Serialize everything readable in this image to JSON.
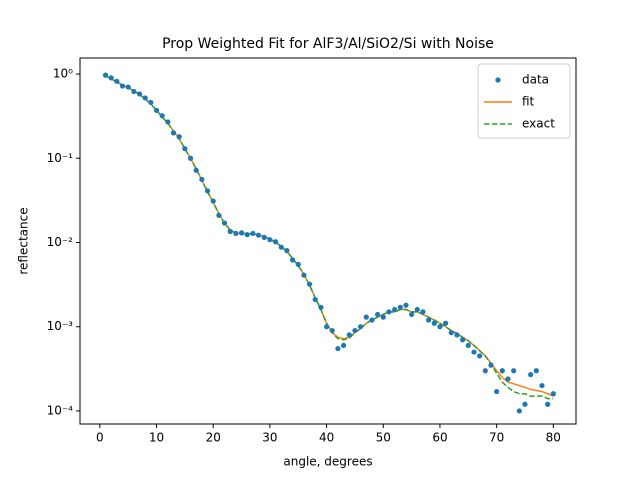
{
  "chart_data": {
    "type": "line",
    "title": "Prop Weighted Fit for AlF3/Al/SiO2/Si with Noise",
    "xlabel": "angle, degrees",
    "ylabel": "reflectance",
    "x": [
      1,
      2,
      3,
      4,
      5,
      6,
      7,
      8,
      9,
      10,
      11,
      12,
      13,
      14,
      15,
      16,
      17,
      18,
      19,
      20,
      21,
      22,
      23,
      24,
      25,
      26,
      27,
      28,
      29,
      30,
      31,
      32,
      33,
      34,
      35,
      36,
      37,
      38,
      39,
      40,
      41,
      42,
      43,
      44,
      45,
      46,
      47,
      48,
      49,
      50,
      51,
      52,
      53,
      54,
      55,
      56,
      57,
      58,
      59,
      60,
      61,
      62,
      63,
      64,
      65,
      66,
      67,
      68,
      69,
      70,
      71,
      72,
      73,
      74,
      75,
      76,
      77,
      78,
      79,
      80
    ],
    "series": [
      {
        "name": "data",
        "color": "#1f77b4",
        "style": "marker",
        "values": [
          0.97,
          0.9,
          0.82,
          0.72,
          0.7,
          0.62,
          0.58,
          0.52,
          0.46,
          0.37,
          0.32,
          0.27,
          0.2,
          0.18,
          0.13,
          0.1,
          0.072,
          0.056,
          0.041,
          0.031,
          0.021,
          0.017,
          0.0135,
          0.0128,
          0.013,
          0.0124,
          0.0128,
          0.0122,
          0.0115,
          0.0108,
          0.0102,
          0.0088,
          0.008,
          0.0062,
          0.0055,
          0.0041,
          0.0032,
          0.0021,
          0.0017,
          0.001,
          0.0009,
          0.00055,
          0.0006,
          0.0008,
          0.0009,
          0.001,
          0.0013,
          0.0012,
          0.0014,
          0.0013,
          0.0015,
          0.0016,
          0.0017,
          0.0018,
          0.0014,
          0.0016,
          0.0015,
          0.0012,
          0.0011,
          0.001,
          0.0011,
          0.00085,
          0.0008,
          0.0007,
          0.0006,
          0.0005,
          0.00045,
          0.0003,
          0.00035,
          0.00017,
          0.0003,
          0.00024,
          0.0003,
          0.0001,
          0.00012,
          0.00027,
          0.0003,
          0.0002,
          0.00012,
          0.00016
        ]
      },
      {
        "name": "fit",
        "color": "#ff7f0e",
        "style": "solid",
        "values": [
          0.95,
          0.88,
          0.8,
          0.74,
          0.69,
          0.63,
          0.57,
          0.51,
          0.44,
          0.37,
          0.31,
          0.26,
          0.21,
          0.17,
          0.13,
          0.1,
          0.075,
          0.055,
          0.04,
          0.03,
          0.022,
          0.017,
          0.014,
          0.013,
          0.0128,
          0.0127,
          0.0126,
          0.0123,
          0.0118,
          0.011,
          0.01,
          0.009,
          0.0078,
          0.0065,
          0.0053,
          0.0042,
          0.0031,
          0.0022,
          0.0016,
          0.0011,
          0.00085,
          0.00075,
          0.00072,
          0.00075,
          0.00085,
          0.00095,
          0.0011,
          0.0012,
          0.0013,
          0.0014,
          0.0015,
          0.0015,
          0.0016,
          0.0016,
          0.0015,
          0.0015,
          0.0014,
          0.0013,
          0.0012,
          0.0011,
          0.001,
          0.0009,
          0.00083,
          0.00075,
          0.00068,
          0.0006,
          0.00052,
          0.00045,
          0.00037,
          0.0003,
          0.00025,
          0.00022,
          0.00021,
          0.0002,
          0.00019,
          0.00018,
          0.000175,
          0.00017,
          0.00016,
          0.00015
        ]
      },
      {
        "name": "exact",
        "color": "#2ca02c",
        "style": "dashed",
        "values": [
          0.95,
          0.88,
          0.8,
          0.74,
          0.69,
          0.63,
          0.57,
          0.51,
          0.44,
          0.37,
          0.31,
          0.26,
          0.21,
          0.17,
          0.13,
          0.1,
          0.075,
          0.055,
          0.04,
          0.03,
          0.022,
          0.017,
          0.014,
          0.013,
          0.0128,
          0.0127,
          0.0126,
          0.0123,
          0.0118,
          0.011,
          0.01,
          0.009,
          0.0078,
          0.0065,
          0.0053,
          0.0042,
          0.0031,
          0.0022,
          0.0016,
          0.0011,
          0.00085,
          0.00072,
          0.0007,
          0.00073,
          0.00085,
          0.00095,
          0.0011,
          0.0012,
          0.0013,
          0.0014,
          0.0015,
          0.0015,
          0.0016,
          0.0016,
          0.0015,
          0.0015,
          0.0014,
          0.0013,
          0.0012,
          0.0011,
          0.001,
          0.0009,
          0.00083,
          0.00075,
          0.00068,
          0.0006,
          0.00052,
          0.00045,
          0.00036,
          0.00028,
          0.00022,
          0.00019,
          0.00017,
          0.00016,
          0.00016,
          0.00015,
          0.00015,
          0.00015,
          0.00014,
          0.00014
        ]
      }
    ],
    "xlim": [
      -3.5,
      84
    ],
    "ylim": [
      7e-05,
      1.55
    ],
    "ylog": true,
    "xticks": [
      0,
      10,
      20,
      30,
      40,
      50,
      60,
      70,
      80
    ],
    "yticks": [
      {
        "value": 0.0001,
        "label": "10⁻⁴"
      },
      {
        "value": 0.001,
        "label": "10⁻³"
      },
      {
        "value": 0.01,
        "label": "10⁻²"
      },
      {
        "value": 0.1,
        "label": "10⁻¹"
      },
      {
        "value": 1,
        "label": "10⁰"
      }
    ],
    "legend": "upper right"
  }
}
